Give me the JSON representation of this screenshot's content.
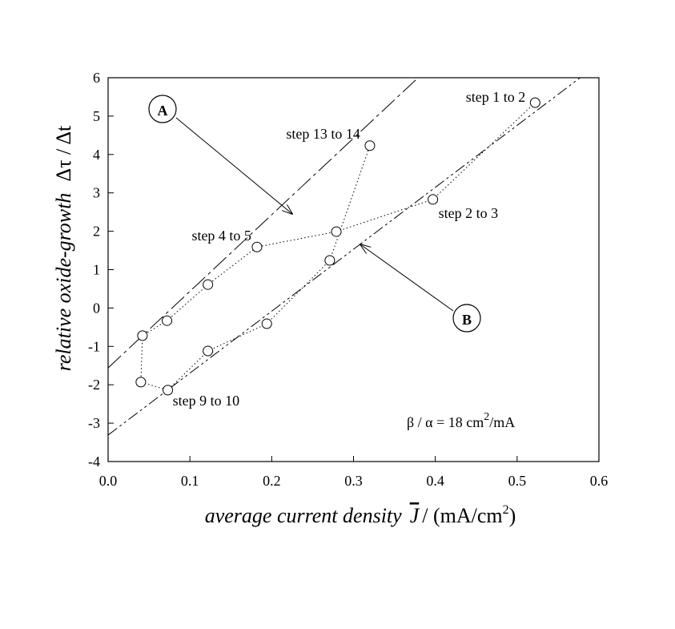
{
  "chart_data": {
    "type": "scatter",
    "xlabel": {
      "text": "average current density",
      "symbol": "J",
      "unit": "/ (mA/cm",
      "sup": "2",
      "close": ")"
    },
    "ylabel": {
      "text": "relative oxide-growth",
      "symbol": "Δτ / Δt"
    },
    "annotation": {
      "text": "β / α = 18 cm",
      "sup": "2",
      "unit": "/mA"
    },
    "x": [
      0.522,
      0.397,
      0.279,
      0.182,
      0.122,
      0.072,
      0.042,
      0.04,
      0.073,
      0.122,
      0.194,
      0.271,
      0.32
    ],
    "values": [
      5.35,
      2.83,
      1.99,
      1.59,
      0.61,
      -0.33,
      -0.72,
      -1.93,
      -2.14,
      -1.12,
      -0.41,
      1.24,
      4.23
    ],
    "point_labels": [
      "step 1 to 2",
      "step 2 to 3",
      null,
      "step 4 to 5",
      null,
      null,
      null,
      null,
      "step 9 to 10",
      null,
      null,
      null,
      "step 13 to 14"
    ],
    "lines": [
      {
        "name": "A",
        "x": [
          0,
          0.379
        ],
        "values": [
          -1.56,
          6
        ]
      },
      {
        "name": "B",
        "x": [
          0,
          0.577
        ],
        "values": [
          -3.31,
          6
        ]
      }
    ],
    "xlim": [
      0,
      0.6
    ],
    "ylim": [
      -4,
      6
    ],
    "xticks": [
      {
        "value": 0,
        "label": "0.0"
      },
      0.1,
      0.2,
      0.3,
      0.4,
      0.5,
      0.6
    ],
    "yticks": [
      -4,
      -3,
      -2,
      -1,
      0,
      1,
      2,
      3,
      4,
      5,
      6
    ],
    "grid": false
  }
}
